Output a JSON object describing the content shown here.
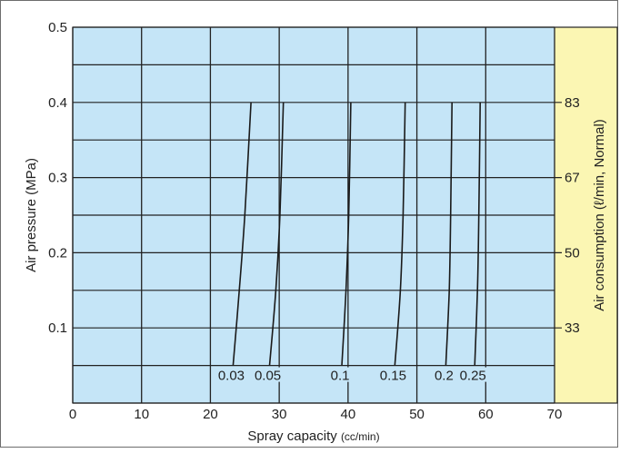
{
  "chart_data": {
    "type": "line",
    "title": "",
    "xlabel": "Spray capacity",
    "xlabel_unit": "(cc/min)",
    "ylabel": "Air pressure (MPa)",
    "y2label": "Air consumption (ℓ/min, Normal)",
    "xlim": [
      0,
      70
    ],
    "ylim": [
      0,
      0.5
    ],
    "x_ticks": [
      "0",
      "10",
      "20",
      "30",
      "40",
      "50",
      "60",
      "70"
    ],
    "y_ticks": [
      "0.1",
      "0.2",
      "0.3",
      "0.4",
      "0.5"
    ],
    "y2_ticks": [
      {
        "label": "33",
        "y": 0.1
      },
      {
        "label": "50",
        "y": 0.2
      },
      {
        "label": "67",
        "y": 0.3
      },
      {
        "label": "83",
        "y": 0.4
      }
    ],
    "grid": true,
    "plot_area_color": "#c5e5f7",
    "secondary_axis_color": "#fbf6b3",
    "series": [
      {
        "name": "0.03",
        "points": [
          [
            23.3,
            0.05
          ],
          [
            24.2,
            0.15
          ],
          [
            25.0,
            0.25
          ],
          [
            25.9,
            0.4
          ]
        ]
      },
      {
        "name": "0.05",
        "points": [
          [
            28.6,
            0.05
          ],
          [
            29.5,
            0.15
          ],
          [
            30.1,
            0.25
          ],
          [
            30.6,
            0.4
          ]
        ]
      },
      {
        "name": "0.1",
        "points": [
          [
            39.1,
            0.05
          ],
          [
            39.7,
            0.15
          ],
          [
            40.1,
            0.25
          ],
          [
            40.4,
            0.4
          ]
        ]
      },
      {
        "name": "0.15",
        "points": [
          [
            46.8,
            0.05
          ],
          [
            47.6,
            0.15
          ],
          [
            48.0,
            0.25
          ],
          [
            48.3,
            0.4
          ]
        ]
      },
      {
        "name": "0.2",
        "points": [
          [
            54.2,
            0.05
          ],
          [
            54.7,
            0.15
          ],
          [
            54.9,
            0.25
          ],
          [
            55.1,
            0.4
          ]
        ]
      },
      {
        "name": "0.25",
        "points": [
          [
            58.4,
            0.05
          ],
          [
            58.8,
            0.15
          ],
          [
            59.0,
            0.25
          ],
          [
            59.2,
            0.4
          ]
        ]
      }
    ]
  }
}
